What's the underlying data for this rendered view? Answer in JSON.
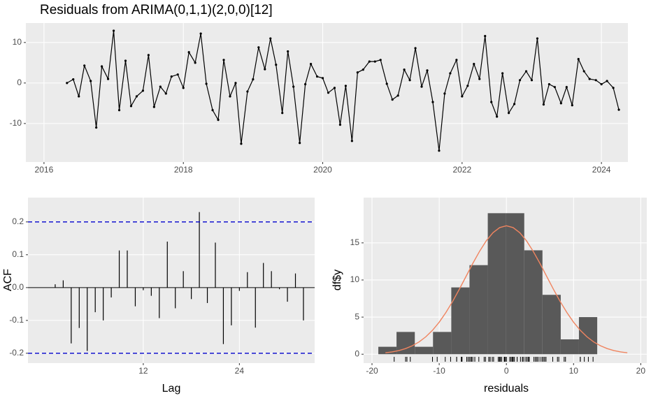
{
  "chart_data": [
    {
      "type": "line",
      "title": "Residuals from ARIMA(0,1,1)(2,0,0)[12]",
      "x": [
        2016.33,
        2016.42,
        2016.5,
        2016.58,
        2016.67,
        2016.75,
        2016.83,
        2016.92,
        2017,
        2017.08,
        2017.17,
        2017.25,
        2017.33,
        2017.42,
        2017.5,
        2017.58,
        2017.67,
        2017.75,
        2017.83,
        2017.92,
        2018,
        2018.08,
        2018.17,
        2018.25,
        2018.33,
        2018.42,
        2018.5,
        2018.58,
        2018.67,
        2018.75,
        2018.83,
        2018.92,
        2019,
        2019.08,
        2019.17,
        2019.25,
        2019.33,
        2019.42,
        2019.5,
        2019.58,
        2019.67,
        2019.75,
        2019.83,
        2019.92,
        2020,
        2020.08,
        2020.17,
        2020.25,
        2020.33,
        2020.42,
        2020.5,
        2020.58,
        2020.67,
        2020.75,
        2020.83,
        2020.92,
        2021,
        2021.08,
        2021.17,
        2021.25,
        2021.33,
        2021.42,
        2021.5,
        2021.58,
        2021.67,
        2021.75,
        2021.83,
        2021.92,
        2022,
        2022.08,
        2022.17,
        2022.25,
        2022.33,
        2022.42,
        2022.5,
        2022.58,
        2022.67,
        2022.75,
        2022.83,
        2022.92,
        2023,
        2023.08,
        2023.17,
        2023.25,
        2023.33,
        2023.42,
        2023.5,
        2023.58,
        2023.67,
        2023.75,
        2023.83,
        2023.92,
        2024,
        2024.08,
        2024.17,
        2024.25
      ],
      "series": [
        {
          "color": "#000000",
          "values": [
            0,
            0.9,
            -3.3,
            4.3,
            0.5,
            -11,
            4.1,
            1,
            12.9,
            -6.7,
            5.5,
            -5.7,
            -3.3,
            -1.9,
            6.9,
            -5.9,
            -0.9,
            -2.6,
            1.6,
            2.1,
            -1.2,
            7.6,
            5,
            12.2,
            -0.2,
            -6.7,
            -9.1,
            5.7,
            -3.3,
            0,
            -15,
            -2.1,
            0.9,
            8.8,
            3.4,
            11,
            4.5,
            -7.4,
            7.8,
            -0.9,
            -14.8,
            -0.3,
            4.7,
            1.6,
            1.2,
            -2.4,
            -1.2,
            -10.3,
            -0.7,
            -14.3,
            2.6,
            3.3,
            5.3,
            5.3,
            5.7,
            -0.2,
            -4.1,
            -3.1,
            3.3,
            0.7,
            8.6,
            -0.9,
            3.1,
            -4.7,
            -16.7,
            -2.6,
            2.4,
            5.7,
            -3.3,
            -0.7,
            4.7,
            1,
            11.6,
            -4.7,
            -8.3,
            2.4,
            -7.4,
            -5.2,
            0.7,
            2.9,
            0.7,
            11,
            -5.3,
            -0.3,
            -1,
            -5,
            -1,
            -5.5,
            5.9,
            2.9,
            1,
            0.7,
            -0.3,
            0.5,
            -1.2,
            -6.6
          ]
        }
      ],
      "xlim": [
        2015.74,
        2024.38
      ],
      "xticks": [
        2016,
        2018,
        2020,
        2022,
        2024
      ],
      "ylim": [
        -19.5,
        14.8
      ],
      "yticks": [
        -10,
        0,
        10
      ],
      "grid": true
    },
    {
      "type": "acf",
      "xlabel": "Lag",
      "ylabel": "ACF",
      "x": [
        1,
        2,
        3,
        4,
        5,
        6,
        7,
        8,
        9,
        10,
        11,
        12,
        13,
        14,
        15,
        16,
        17,
        18,
        19,
        20,
        21,
        22,
        23,
        24,
        25,
        26,
        27,
        28,
        29,
        30,
        31,
        32
      ],
      "values": [
        0.01,
        0.022,
        -0.17,
        -0.123,
        -0.193,
        -0.075,
        -0.1,
        -0.03,
        0.113,
        0.113,
        -0.057,
        -0.008,
        -0.025,
        -0.093,
        0.14,
        -0.063,
        0.05,
        -0.035,
        0.23,
        -0.047,
        0.137,
        -0.172,
        -0.115,
        -0.01,
        0.047,
        -0.122,
        0.075,
        0.05,
        -0.005,
        -0.043,
        0.043,
        -0.1
      ],
      "color": "#000000",
      "ci": [
        0.2,
        -0.2
      ],
      "ci_color": "#0000cc",
      "xlim": [
        -2.4,
        33.4
      ],
      "xticks": [
        12,
        24
      ],
      "ylim": [
        -0.23,
        0.274
      ],
      "yticks": [
        -0.2,
        -0.1,
        {
          "value": 0,
          "label": "0.0"
        },
        0.1,
        0.2
      ],
      "grid": true
    },
    {
      "type": "histogram",
      "xlabel": "residuals",
      "ylabel": "df$y",
      "bins": [
        -19.06,
        -16.35,
        -13.63,
        -10.92,
        -8.2,
        -5.49,
        -2.77,
        -0.06,
        2.66,
        5.37,
        8.09,
        10.8,
        13.52
      ],
      "values": [
        1,
        3,
        1,
        3,
        9,
        12,
        19,
        19,
        14,
        8,
        2,
        5
      ],
      "color": "#595959",
      "density": {
        "color": "#f0845f",
        "x": [
          -18,
          -17,
          -16,
          -15,
          -14,
          -13,
          -12,
          -11,
          -10,
          -9,
          -8,
          -7,
          -6,
          -5,
          -4,
          -3,
          -2,
          -1,
          0,
          1,
          2,
          3,
          4,
          5,
          6,
          7,
          8,
          9,
          10,
          11,
          12,
          13,
          14,
          15,
          16,
          17,
          18
        ],
        "y": [
          0.19,
          0.31,
          0.49,
          0.76,
          1.14,
          1.65,
          2.34,
          3.22,
          4.31,
          5.62,
          7.11,
          8.76,
          10.49,
          12.23,
          13.85,
          15.27,
          16.37,
          17.06,
          17.3,
          17.06,
          16.37,
          15.27,
          13.85,
          12.23,
          10.49,
          8.76,
          7.11,
          5.62,
          4.31,
          3.22,
          2.34,
          1.65,
          1.14,
          0.76,
          0.49,
          0.31,
          0.19
        ]
      },
      "rug": true,
      "xlim": [
        -21.25,
        20.9
      ],
      "xticks": [
        -20,
        -10,
        0,
        10,
        20
      ],
      "ylim": [
        -1.2,
        21.1
      ],
      "yticks": [
        0,
        5,
        10,
        15
      ],
      "grid": true
    }
  ]
}
